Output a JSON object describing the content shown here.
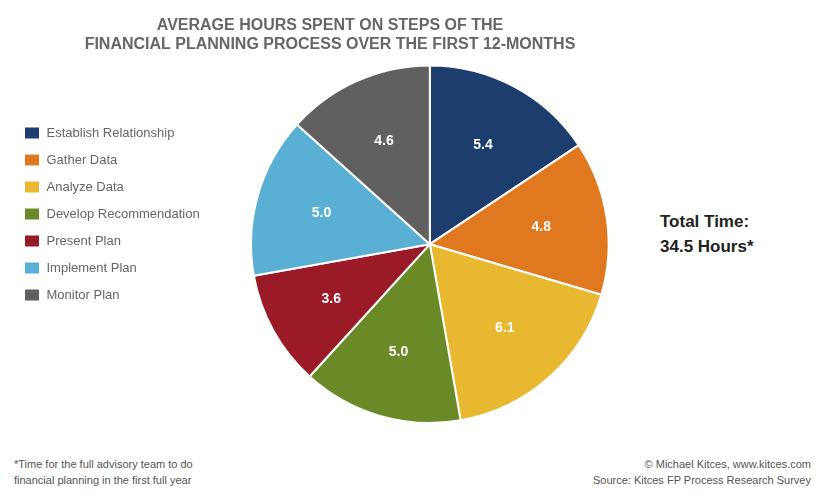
{
  "chart_data": {
    "type": "pie",
    "title": "AVERAGE HOURS SPENT ON STEPS OF THE\nFINANCIAL PLANNING PROCESS OVER THE FIRST 12-MONTHS",
    "categories": [
      "Establish Relationship",
      "Gather Data",
      "Analyze Data",
      "Develop Recommendation",
      "Present Plan",
      "Implement Plan",
      "Monitor Plan"
    ],
    "values": [
      5.4,
      4.8,
      6.1,
      5.0,
      3.6,
      5.0,
      4.6
    ],
    "value_labels": [
      "5.4",
      "4.8",
      "6.1",
      "5.0",
      "3.6",
      "5.0",
      "4.6"
    ],
    "colors": [
      "#1c3d6e",
      "#e07820",
      "#e8b830",
      "#6a8a28",
      "#9b1a28",
      "#5aafd4",
      "#606060"
    ],
    "data_labels": true,
    "legend": "left",
    "annotations": [
      "Total Time:\n34.5 Hours*",
      "*Time for the full advisory team to do\nfinancial planning in the first full year",
      "© Michael Kitces, www.kitces.com\nSource: Kitces FP Process Research Survey"
    ]
  }
}
